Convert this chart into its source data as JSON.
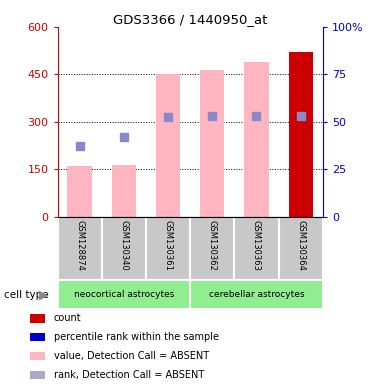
{
  "title": "GDS3366 / 1440950_at",
  "categories": [
    "GSM128874",
    "GSM130340",
    "GSM130361",
    "GSM130362",
    "GSM130363",
    "GSM130364"
  ],
  "bar_values": [
    160,
    165,
    450,
    465,
    490,
    520
  ],
  "bar_colors": [
    "#FFB6C1",
    "#FFB6C1",
    "#FFB6C1",
    "#FFB6C1",
    "#FFB6C1",
    "#CC0000"
  ],
  "rank_values": [
    225,
    252,
    315,
    320,
    318,
    320
  ],
  "rank_color": "#8888CC",
  "ylim_left": [
    0,
    600
  ],
  "ylim_right": [
    0,
    100
  ],
  "yticks_left": [
    0,
    150,
    300,
    450,
    600
  ],
  "yticks_right": [
    0,
    25,
    50,
    75,
    100
  ],
  "ytick_labels_right": [
    "0",
    "25",
    "50",
    "75",
    "100%"
  ],
  "left_axis_color": "#CC0000",
  "right_axis_color": "#0000CC",
  "neocortical_label": "neocortical astrocytes",
  "cerebellar_label": "cerebellar astrocytes",
  "cell_type_label": "cell type",
  "green_color": "#90EE90",
  "gray_color": "#C8C8C8",
  "legend_items": [
    {
      "label": "count",
      "color": "#CC0000"
    },
    {
      "label": "percentile rank within the sample",
      "color": "#0000CC"
    },
    {
      "label": "value, Detection Call = ABSENT",
      "color": "#FFB6C1"
    },
    {
      "label": "rank, Detection Call = ABSENT",
      "color": "#AAAACC"
    }
  ],
  "pink_bar_width": 0.55,
  "rank_marker_size": 6
}
